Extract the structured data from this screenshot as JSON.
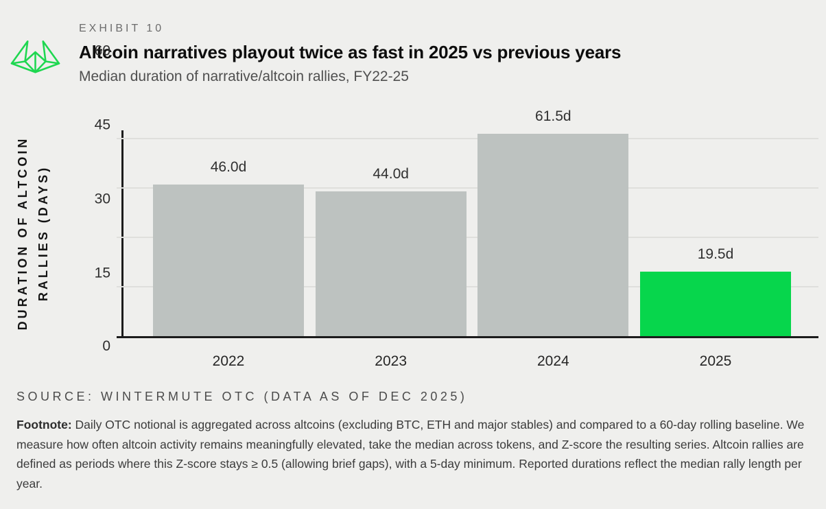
{
  "header": {
    "exhibit_label": "EXHIBIT 10",
    "title": "Altcoin narratives playout twice as fast in 2025 vs previous years",
    "subtitle": "Median duration of narrative/altcoin rallies, FY22-25",
    "logo": {
      "name": "wintermute-logo",
      "color": "#1ed750"
    }
  },
  "chart_data": {
    "type": "bar",
    "categories": [
      "2022",
      "2023",
      "2024",
      "2025"
    ],
    "values": [
      46.0,
      44.0,
      61.5,
      19.5
    ],
    "bar_labels": [
      "46.0d",
      "44.0d",
      "61.5d",
      "19.5d"
    ],
    "bar_colors": [
      "#bdc2c0",
      "#bdc2c0",
      "#bdc2c0",
      "#07d64c"
    ],
    "highlighted_category": "2025",
    "ylabel_line1": "DURATION OF ALTCOIN",
    "ylabel_line2": "RALLIES (DAYS)",
    "yticks": [
      0,
      15,
      30,
      45,
      60
    ],
    "ylim": [
      0,
      63
    ],
    "grid": "horizontal",
    "legend": false,
    "unit": "days"
  },
  "source": "SOURCE: WINTERMUTE OTC (DATA AS OF DEC 2025)",
  "footnote": {
    "label": "Footnote:",
    "text": " Daily OTC notional is aggregated across altcoins (excluding BTC, ETH and major stables) and compared to a 60-day rolling baseline. We measure how often altcoin activity remains meaningfully elevated, take the median across tokens, and Z-score the resulting series. Altcoin rallies are defined as periods where this Z-score stays ≥ 0.5 (allowing brief gaps), with a 5-day minimum. Reported durations reflect the median rally length per year."
  },
  "colors": {
    "background": "#efefed",
    "axis": "#1c1c1c",
    "gridline": "#dfdfdc",
    "bar_default": "#bdc2c0",
    "bar_highlight": "#07d64c",
    "accent_green": "#1ed750"
  }
}
